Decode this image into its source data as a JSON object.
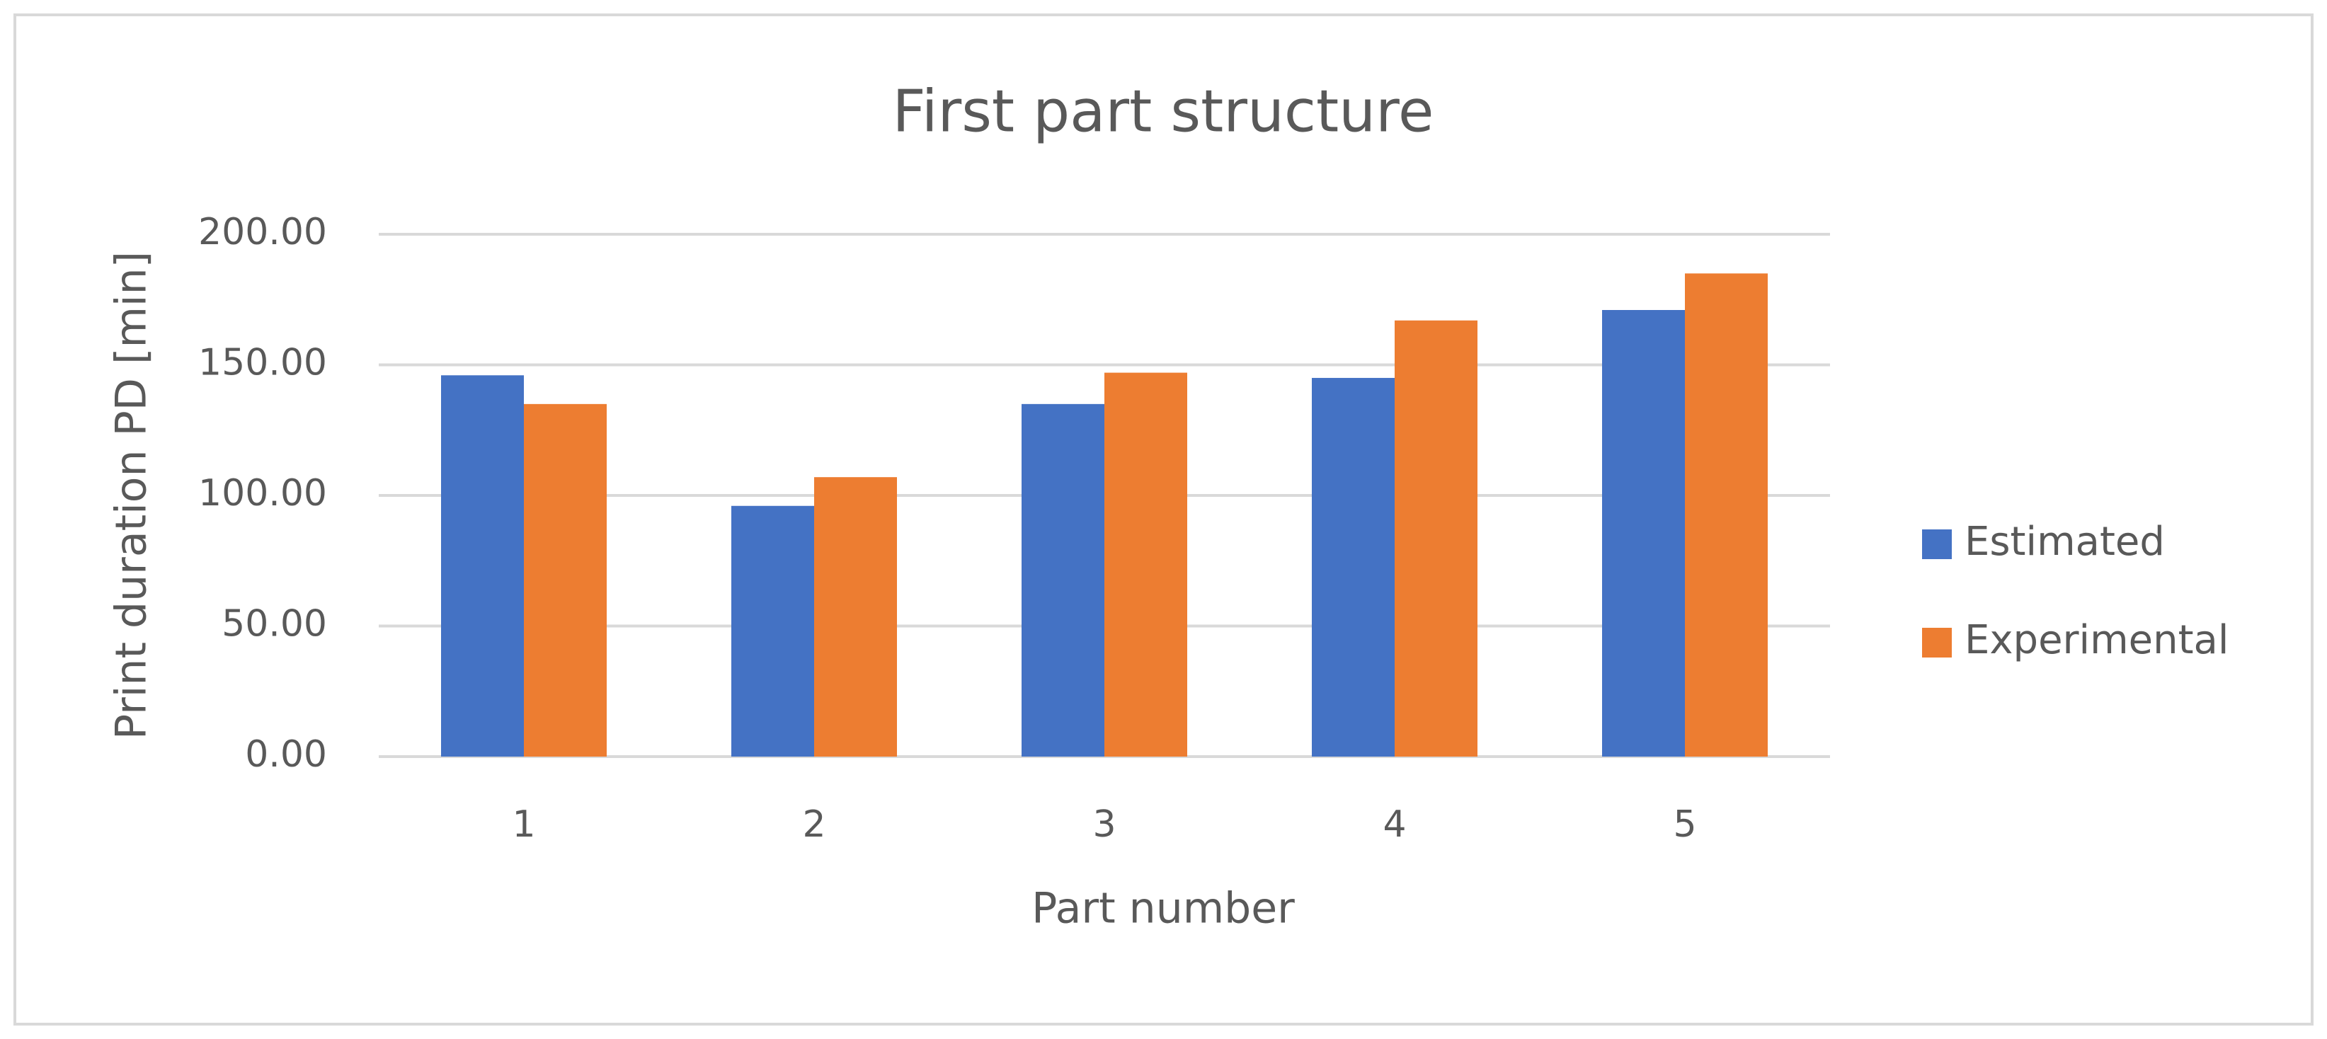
{
  "chart_data": {
    "type": "bar",
    "title": "First part structure",
    "x_label": "Part number",
    "y_label": "Print duration PD [min]",
    "categories": [
      "1",
      "2",
      "3",
      "4",
      "5"
    ],
    "series": [
      {
        "name": "Estimated",
        "color": "#4472c4",
        "values": [
          146,
          96,
          135,
          145,
          171
        ]
      },
      {
        "name": "Experimental",
        "color": "#ed7d31",
        "values": [
          135,
          107,
          147,
          167,
          185
        ]
      }
    ],
    "ylim": [
      0,
      200
    ],
    "yticks": [
      {
        "value": 0,
        "label": "0.00"
      },
      {
        "value": 50,
        "label": "50.00"
      },
      {
        "value": 100,
        "label": "100.00"
      },
      {
        "value": 150,
        "label": "150.00"
      },
      {
        "value": 200,
        "label": "200.00"
      }
    ],
    "grid": true,
    "legend": "right"
  }
}
